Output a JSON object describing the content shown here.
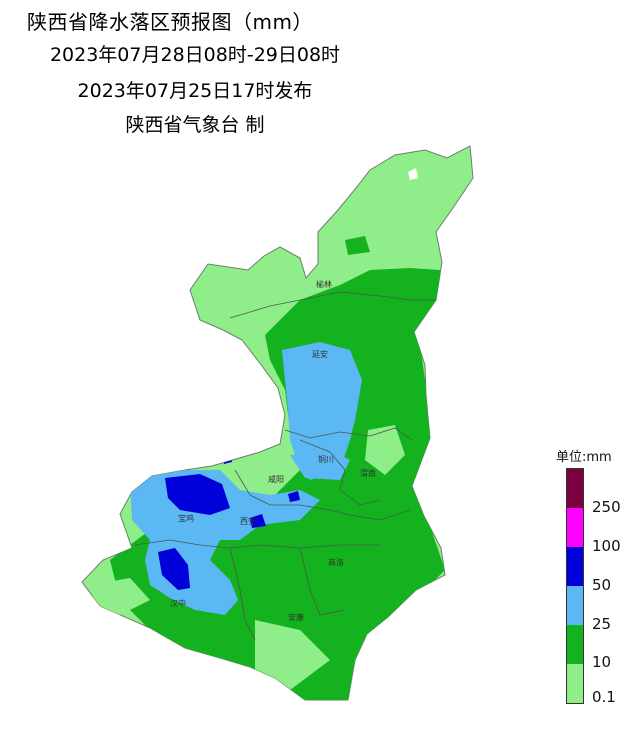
{
  "header": {
    "title": "陕西省降水落区预报图（mm）",
    "period": "2023年07月28日08时-29日08时",
    "issued": "2023年07月25日17时发布",
    "producer": "陕西省气象台 制"
  },
  "cities": [
    "榆林",
    "延安",
    "铜川",
    "渭南",
    "咸阳",
    "宝鸡",
    "西安",
    "商洛",
    "汉中",
    "安康"
  ],
  "legend": {
    "title": "单位:mm",
    "ticks": [
      "250",
      "100",
      "50",
      "25",
      "10",
      "0.1"
    ],
    "colors": [
      "#7a0040",
      "#ff00ff",
      "#0000d8",
      "#5bb8f5",
      "#14b21e",
      "#90ee8a"
    ]
  }
}
